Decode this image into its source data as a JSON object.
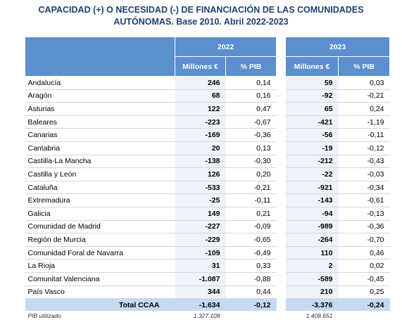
{
  "title": {
    "lines": [
      "CAPACIDAD (+) O NECESIDAD (-) DE FINANCIACIÓN DE LAS COMUNIDADES",
      "AUTÓNOMAS. Base 2010. Abril 2022-2023"
    ]
  },
  "table": {
    "years": [
      "2022",
      "2023"
    ],
    "columns": [
      "Millones €",
      "% PIB",
      "Millones €",
      "% PIB"
    ],
    "rows": [
      [
        "Andalucía",
        "246",
        "0,14",
        "59",
        "0,03"
      ],
      [
        "Aragón",
        "68",
        "0,16",
        "-92",
        "-0,21"
      ],
      [
        "Asturias",
        "122",
        "0,47",
        "65",
        "0,24"
      ],
      [
        "Baleares",
        "-223",
        "-0,67",
        "-421",
        "-1,19"
      ],
      [
        "Canarias",
        "-169",
        "-0,36",
        "-56",
        "-0,11"
      ],
      [
        "Cantabria",
        "20",
        "0,13",
        "-19",
        "-0,12"
      ],
      [
        "Castilla-La Mancha",
        "-138",
        "-0,30",
        "-212",
        "-0,43"
      ],
      [
        "Castilla y León",
        "126",
        "0,20",
        "-22",
        "-0,03"
      ],
      [
        "Cataluña",
        "-533",
        "-0,21",
        "-921",
        "-0,34"
      ],
      [
        "Extremadura",
        "-25",
        "-0,11",
        "-143",
        "-0,61"
      ],
      [
        "Galicia",
        "149",
        "0,21",
        "-94",
        "-0,13"
      ],
      [
        "Comunidad de Madrid",
        "-227",
        "-0,09",
        "-989",
        "-0,36"
      ],
      [
        "Región de Murcia",
        "-229",
        "-0,65",
        "-264",
        "-0,70"
      ],
      [
        "Comunidad Foral de Navarra",
        "-109",
        "-0,49",
        "110",
        "0,46"
      ],
      [
        "La Rioja",
        "31",
        "0,33",
        "2",
        "0,02"
      ],
      [
        "Comunitat Valenciana",
        "-1.087",
        "-0,88",
        "-589",
        "-0,45"
      ],
      [
        "País Vasco",
        "344",
        "0,44",
        "210",
        "0,25"
      ]
    ],
    "total": [
      "Total CCAA",
      "-1.634",
      "-0,12",
      "-3.376",
      "-0,24"
    ],
    "footer": [
      "PIB utilizado",
      "1.327.108",
      "1.408.651"
    ]
  }
}
